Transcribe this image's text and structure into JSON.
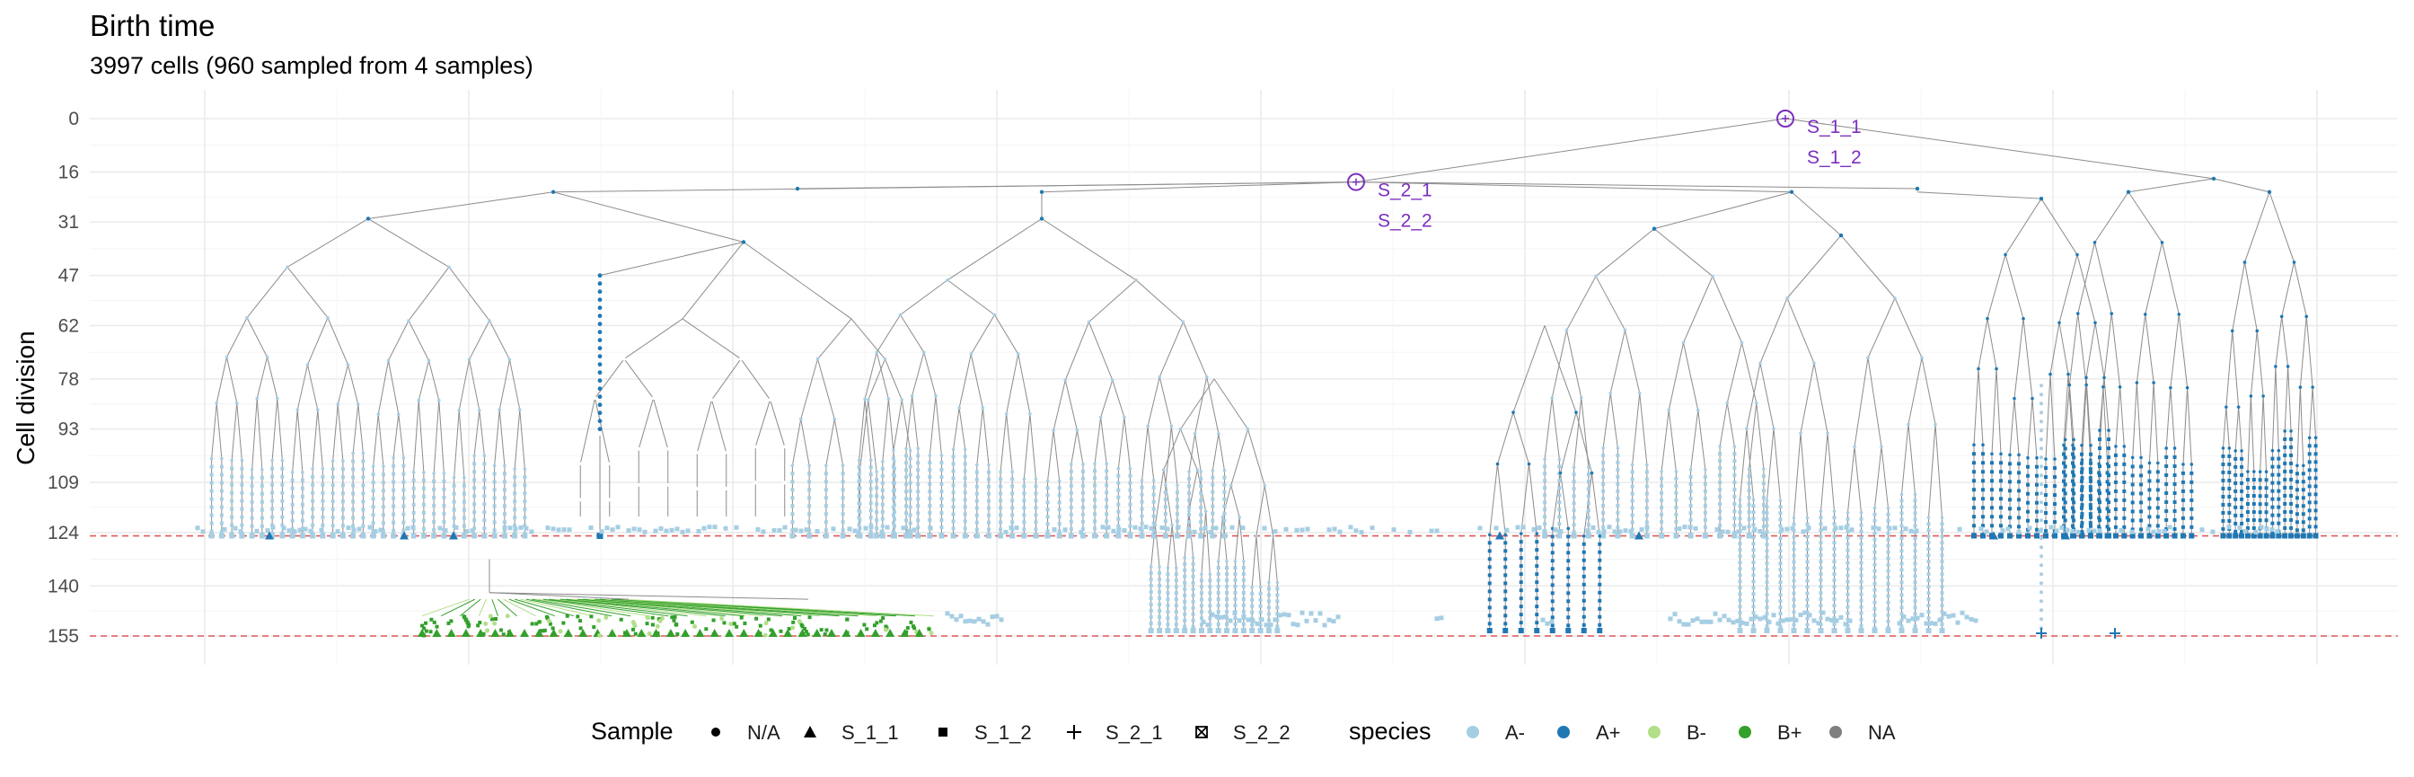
{
  "chart_data": {
    "type": "scatter",
    "title": "Birth time",
    "subtitle": "3997 cells (960 sampled from 4 samples)",
    "ylabel": "Cell division",
    "xlabel": "",
    "y_axis_reversed": true,
    "y_ticks": [
      "0",
      "16",
      "31",
      "47",
      "62",
      "78",
      "93",
      "109",
      "124",
      "140",
      "155"
    ],
    "ylim": [
      0,
      155
    ],
    "reference_lines": [
      {
        "y": 125,
        "color": "#e05a5a",
        "style": "dashed"
      },
      {
        "y": 155,
        "color": "#e05a5a",
        "style": "dashed"
      }
    ],
    "annotations": [
      {
        "y": 0,
        "labels": [
          "S_1_1",
          "S_1_2"
        ]
      },
      {
        "y": 19,
        "labels": [
          "S_2_1",
          "S_2_2"
        ]
      }
    ],
    "legend_sample": {
      "title": "Sample",
      "items": [
        {
          "label": "N/A",
          "shape": "circle"
        },
        {
          "label": "S_1_1",
          "shape": "triangle"
        },
        {
          "label": "S_1_2",
          "shape": "square"
        },
        {
          "label": "S_2_1",
          "shape": "plus"
        },
        {
          "label": "S_2_2",
          "shape": "square-x"
        }
      ]
    },
    "legend_species": {
      "title": "species",
      "items": [
        {
          "label": "A-",
          "color": "#a6cee3"
        },
        {
          "label": "A+",
          "color": "#1f78b4"
        },
        {
          "label": "B-",
          "color": "#b2df8a"
        },
        {
          "label": "B+",
          "color": "#33a02c"
        },
        {
          "label": "NA",
          "color": "#7f7f7f"
        }
      ]
    },
    "legend_placement": "bottom",
    "grid": true,
    "tree_line_color": "#8c8c8c"
  }
}
